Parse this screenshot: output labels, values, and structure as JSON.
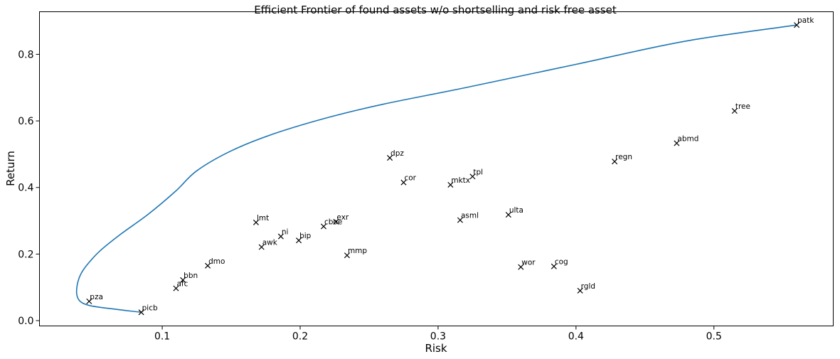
{
  "chart_data": {
    "type": "scatter",
    "title": "Efficient Frontier of found assets w/o shortselling and risk free asset",
    "xlabel": "Risk",
    "ylabel": "Return",
    "xlim": [
      0.011,
      0.5865
    ],
    "ylim": [
      -0.016,
      0.928
    ],
    "xticks": [
      0.1,
      0.2,
      0.3,
      0.4,
      0.5
    ],
    "xtick_labels": [
      "0.1",
      "0.2",
      "0.3",
      "0.4",
      "0.5"
    ],
    "yticks": [
      0.0,
      0.2,
      0.4,
      0.6,
      0.8
    ],
    "ytick_labels": [
      "0.0",
      "0.2",
      "0.4",
      "0.6",
      "0.8"
    ],
    "grid": false,
    "colors": {
      "frontier": "#1f77b4",
      "marker": "#000000"
    },
    "series": [
      {
        "type": "line",
        "x": [
          0.0848,
          0.055,
          0.045,
          0.04,
          0.038,
          0.0385,
          0.041,
          0.046,
          0.055,
          0.07,
          0.09,
          0.11,
          0.125,
          0.15,
          0.18,
          0.22,
          0.26,
          0.32,
          0.4,
          0.48,
          0.56
        ],
        "y": [
          0.025,
          0.04,
          0.048,
          0.06,
          0.08,
          0.11,
          0.14,
          0.17,
          0.21,
          0.26,
          0.32,
          0.39,
          0.45,
          0.51,
          0.56,
          0.61,
          0.65,
          0.7,
          0.77,
          0.84,
          0.888
        ]
      },
      {
        "type": "scatter",
        "marker": "x",
        "points": [
          {
            "label": "patk",
            "x": 0.56,
            "y": 0.888
          },
          {
            "label": "tree",
            "x": 0.515,
            "y": 0.63
          },
          {
            "label": "abmd",
            "x": 0.473,
            "y": 0.533
          },
          {
            "label": "regn",
            "x": 0.428,
            "y": 0.478
          },
          {
            "label": "dpz",
            "x": 0.265,
            "y": 0.489
          },
          {
            "label": "cor",
            "x": 0.275,
            "y": 0.415
          },
          {
            "label": "mktx",
            "x": 0.309,
            "y": 0.408
          },
          {
            "label": "tpl",
            "x": 0.325,
            "y": 0.433
          },
          {
            "label": "ulta",
            "x": 0.351,
            "y": 0.318
          },
          {
            "label": "asml",
            "x": 0.316,
            "y": 0.302
          },
          {
            "label": "exr",
            "x": 0.226,
            "y": 0.297
          },
          {
            "label": "cboe",
            "x": 0.217,
            "y": 0.283
          },
          {
            "label": "lmt",
            "x": 0.168,
            "y": 0.295
          },
          {
            "label": "ni",
            "x": 0.186,
            "y": 0.253
          },
          {
            "label": "bip",
            "x": 0.199,
            "y": 0.241
          },
          {
            "label": "awk",
            "x": 0.172,
            "y": 0.221
          },
          {
            "label": "mmp",
            "x": 0.234,
            "y": 0.196
          },
          {
            "label": "dmo",
            "x": 0.133,
            "y": 0.165
          },
          {
            "label": "bbn",
            "x": 0.115,
            "y": 0.122
          },
          {
            "label": "afc",
            "x": 0.11,
            "y": 0.097
          },
          {
            "label": "pza",
            "x": 0.047,
            "y": 0.058
          },
          {
            "label": "picb",
            "x": 0.0848,
            "y": 0.025
          },
          {
            "label": "wor",
            "x": 0.36,
            "y": 0.161
          },
          {
            "label": "cog",
            "x": 0.384,
            "y": 0.163
          },
          {
            "label": "rgld",
            "x": 0.403,
            "y": 0.09
          }
        ]
      }
    ]
  }
}
